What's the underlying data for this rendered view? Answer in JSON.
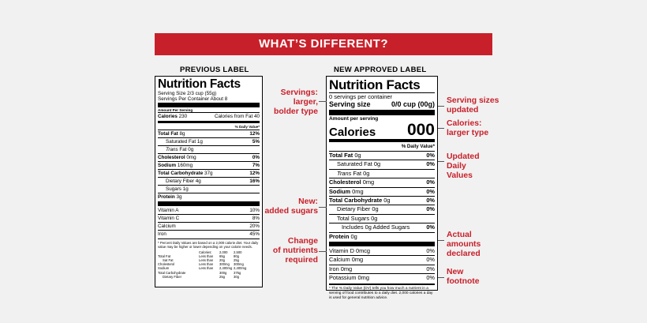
{
  "banner": "WHAT’S DIFFERENT?",
  "previous": {
    "heading": "PREVIOUS LABEL",
    "title": "Nutrition Facts",
    "serving_size": "Serving Size 2/3 cup (55g)",
    "servings_per_container": "Servings Per Container About 8",
    "amount_per_serving": "Amount Per Serving",
    "calories_label": "Calories",
    "calories_value": "230",
    "calories_from_fat": "Calories from Fat 40",
    "dv_header": "% Daily Value*",
    "nutrients": [
      {
        "label": "Total Fat",
        "amount": "8g",
        "dv": "12%"
      },
      {
        "label": "Saturated Fat",
        "amount": "1g",
        "dv": "5%"
      },
      {
        "label": "Trans",
        "amount": "Fat 0g",
        "dv": ""
      },
      {
        "label": "Cholesterol",
        "amount": "0mg",
        "dv": "0%"
      },
      {
        "label": "Sodium",
        "amount": "160mg",
        "dv": "7%"
      },
      {
        "label": "Total Carbohydrate",
        "amount": "37g",
        "dv": "12%"
      },
      {
        "label": "Dietary Fiber",
        "amount": "4g",
        "dv": "16%"
      },
      {
        "label": "Sugars",
        "amount": "1g",
        "dv": ""
      },
      {
        "label": "Protein",
        "amount": "3g",
        "dv": ""
      }
    ],
    "vitamins": [
      {
        "label": "Vitamin A",
        "dv": "10%"
      },
      {
        "label": "Vitamin C",
        "dv": "8%"
      },
      {
        "label": "Calcium",
        "dv": "20%"
      },
      {
        "label": "Iron",
        "dv": "45%"
      }
    ],
    "footnote": "* Percent Daily Values are based on a 2,000 calorie diet. Your daily value may be higher or lower depending on your calorie needs.",
    "table_header": [
      "",
      "Calories:",
      "2,000",
      "2,500"
    ],
    "table_rows": [
      [
        "Total Fat",
        "Less than",
        "65g",
        "80g"
      ],
      [
        "Sat Fat",
        "Less than",
        "20g",
        "25g"
      ],
      [
        "Cholesterol",
        "Less than",
        "300mg",
        "300mg"
      ],
      [
        "Sodium",
        "Less than",
        "2,400mg",
        "2,400mg"
      ],
      [
        "Total Carbohydrate",
        "",
        "300g",
        "375g"
      ],
      [
        "Dietary Fiber",
        "",
        "25g",
        "30g"
      ]
    ]
  },
  "new": {
    "heading": "NEW APPROVED LABEL",
    "title": "Nutrition Facts",
    "servings_per_container": "0 servings per container",
    "serving_size_label": "Serving size",
    "serving_size_value": "0/0 cup (00g)",
    "amount_per_serving": "Amount per serving",
    "calories_label": "Calories",
    "calories_value": "000",
    "dv_header": "% Daily Value*",
    "nutrients": [
      {
        "label": "Total Fat",
        "amount": "0g",
        "dv": "0%"
      },
      {
        "label": "Saturated Fat",
        "amount": "0g",
        "dv": "0%"
      },
      {
        "label": "Trans",
        "amount": "Fat 0g",
        "dv": ""
      },
      {
        "label": "Cholesterol",
        "amount": "0mg",
        "dv": "0%"
      },
      {
        "label": "Sodium",
        "amount": "0mg",
        "dv": "0%"
      },
      {
        "label": "Total Carbohydrate",
        "amount": "0g",
        "dv": "0%"
      },
      {
        "label": "Dietary Fiber",
        "amount": "0g",
        "dv": "0%"
      },
      {
        "label": "Total Sugars",
        "amount": "0g",
        "dv": ""
      },
      {
        "label": "Includes 0g Added Sugars",
        "amount": "",
        "dv": "0%"
      },
      {
        "label": "Protein",
        "amount": "0g",
        "dv": ""
      }
    ],
    "vitamins": [
      {
        "label": "Vitamin D 0mcg",
        "dv": "0%"
      },
      {
        "label": "Calcium 0mg",
        "dv": "0%"
      },
      {
        "label": "Iron 0mg",
        "dv": "0%"
      },
      {
        "label": "Potassium 0mg",
        "dv": "0%"
      }
    ],
    "footnote": "* The % Daily Value (DV) tells you how much a nutrient in a serving of food contributes to a daily diet. 2,000 calories a day is used for general nutrition advice."
  },
  "annotations": {
    "left": [
      {
        "text": [
          "Servings:",
          "larger,",
          "bolder type"
        ]
      },
      {
        "text": [
          "New:",
          "added sugars"
        ]
      },
      {
        "text": [
          "Change",
          "of nutrients",
          "required"
        ]
      }
    ],
    "right": [
      {
        "text": [
          "Serving sizes",
          "updated"
        ]
      },
      {
        "text": [
          "Calories:",
          "larger type"
        ]
      },
      {
        "text": [
          "Updated",
          "Daily",
          "Values"
        ]
      },
      {
        "text": [
          "Actual",
          "amounts",
          "declared"
        ]
      },
      {
        "text": [
          "New",
          "footnote"
        ]
      }
    ]
  },
  "colors": {
    "accent": "#c8202a",
    "background": "#f1f1f1"
  }
}
